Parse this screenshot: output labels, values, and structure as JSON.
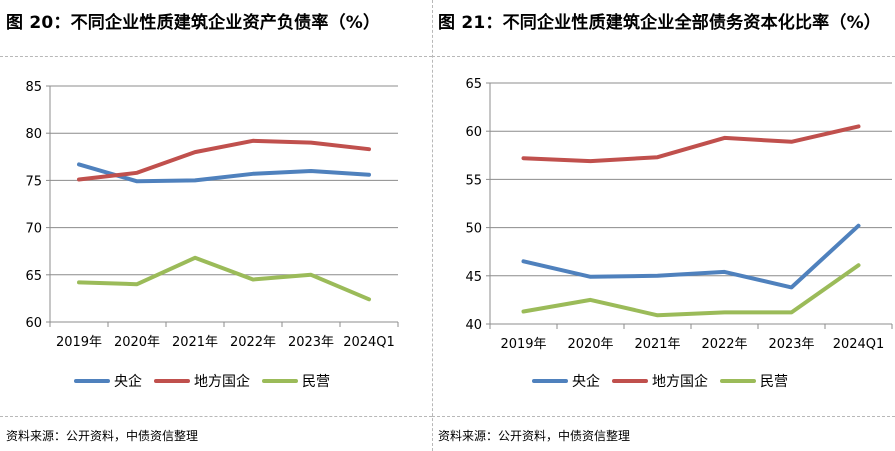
{
  "charts": [
    {
      "title": "图 20：不同企业性质建筑企业资产负债率（%）",
      "source": "资料来源：公开资料，中债资信整理"
    },
    {
      "title": "图 21：不同企业性质建筑企业全部债务资本化比率（%）",
      "source": "资料来源：公开资料，中债资信整理"
    }
  ],
  "chart_data": [
    {
      "type": "line",
      "title": "图 20：不同企业性质建筑企业资产负债率（%）",
      "categories": [
        "2019年",
        "2020年",
        "2021年",
        "2022年",
        "2023年",
        "2024Q1"
      ],
      "ylim": [
        60,
        85
      ],
      "yticks": [
        60,
        65,
        70,
        75,
        80,
        85
      ],
      "grid": true,
      "legend": "bottom",
      "series": [
        {
          "name": "央企",
          "color": "#4f81bd",
          "values": [
            76.7,
            74.9,
            75.0,
            75.7,
            76.0,
            75.6
          ]
        },
        {
          "name": "地方国企",
          "color": "#c0504d",
          "values": [
            75.1,
            75.8,
            78.0,
            79.2,
            79.0,
            78.3
          ]
        },
        {
          "name": "民营",
          "color": "#9bbb59",
          "values": [
            64.2,
            64.0,
            66.8,
            64.5,
            65.0,
            62.4
          ]
        }
      ]
    },
    {
      "type": "line",
      "title": "图 21：不同企业性质建筑企业全部债务资本化比率（%）",
      "categories": [
        "2019年",
        "2020年",
        "2021年",
        "2022年",
        "2023年",
        "2024Q1"
      ],
      "ylim": [
        40,
        65
      ],
      "yticks": [
        40,
        45,
        50,
        55,
        60,
        65
      ],
      "grid": true,
      "legend": "bottom",
      "series": [
        {
          "name": "央企",
          "color": "#4f81bd",
          "values": [
            46.5,
            44.9,
            45.0,
            45.4,
            43.8,
            50.2
          ]
        },
        {
          "name": "地方国企",
          "color": "#c0504d",
          "values": [
            57.2,
            56.9,
            57.3,
            59.3,
            58.9,
            60.5
          ]
        },
        {
          "name": "民营",
          "color": "#9bbb59",
          "values": [
            41.3,
            42.5,
            40.9,
            41.2,
            41.2,
            46.1
          ]
        }
      ]
    }
  ]
}
